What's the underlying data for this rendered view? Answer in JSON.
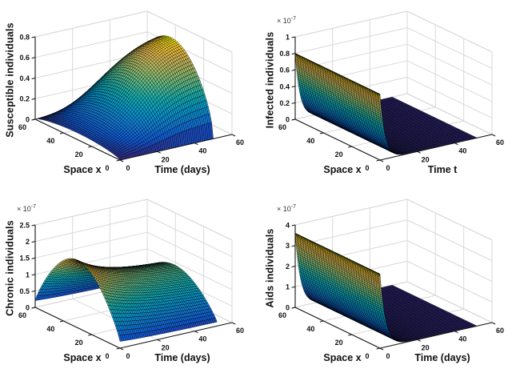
{
  "figure": {
    "background": "#ffffff",
    "colormap": "parula",
    "grid_color": "#d9d9d9",
    "axis_color": "#151515",
    "tick_text_color": "#111111",
    "surface_edge_color": "rgba(0,0,0,0.85)"
  },
  "chart_data": [
    {
      "id": "susceptible",
      "position": "top-left",
      "type": "surface",
      "zlabel": "Susceptible individuals",
      "xlabel": "Time (days)",
      "ylabel": "Space x",
      "x_ticks": [
        0,
        20,
        40,
        60
      ],
      "y_ticks": [
        0,
        20,
        40,
        60
      ],
      "z_ticks": [
        "0",
        "0.2",
        "0.4",
        "0.6",
        "0.8"
      ],
      "xlim": [
        0,
        60
      ],
      "ylim": [
        0,
        60
      ],
      "zlim": [
        0,
        0.8
      ],
      "scale_factor": null,
      "grid": true,
      "surface": {
        "kind": "ramp_sin",
        "z_peak": 0.82,
        "t_mid": 22,
        "t_tau": 9,
        "x_pow": 0.6,
        "t_max": 50,
        "s_max": 60,
        "grid_nt": 52,
        "grid_ns": 50,
        "t_power": 1
      },
      "description": "Susceptible population grows logistically in time from 0 toward ~0.8, with a sine-shaped spatial profile vanishing at space boundaries x=0 and x=60."
    },
    {
      "id": "infected",
      "position": "top-right",
      "type": "surface",
      "zlabel": "Infected individuals",
      "xlabel": "Time t",
      "ylabel": "Space x",
      "x_ticks": [
        0,
        20,
        40,
        60
      ],
      "y_ticks": [
        0,
        20,
        40,
        60
      ],
      "z_ticks": [
        "0",
        "0.2",
        "0.4",
        "0.6",
        "0.8",
        "1"
      ],
      "xlim": [
        0,
        60
      ],
      "ylim": [
        0,
        60
      ],
      "zlim": [
        0,
        1
      ],
      "scale_factor": {
        "base": "× 10",
        "exp": "-7"
      },
      "grid": true,
      "surface": {
        "kind": "decay_wall",
        "z0": 0.8,
        "t_tau": 2.6,
        "t_max": 52,
        "s_max": 60,
        "grid_nt": 110,
        "grid_ns": 55,
        "t_power": 2.2
      },
      "description": "Infected population starts at 0.8e-7 uniformly in space at t=0 and decays exponentially to ~0, forming a wall at t=0."
    },
    {
      "id": "chronic",
      "position": "bottom-left",
      "type": "surface",
      "zlabel": "Chronic individuals",
      "xlabel": "Time (days)",
      "ylabel": "Space x",
      "x_ticks": [
        0,
        20,
        40,
        60
      ],
      "y_ticks": [
        0,
        20,
        40,
        60
      ],
      "z_ticks": [
        "0",
        "0.5",
        "1",
        "1.5",
        "2",
        "2.5"
      ],
      "xlim": [
        0,
        60
      ],
      "ylim": [
        0,
        60
      ],
      "zlim": [
        0,
        2.5
      ],
      "scale_factor": {
        "base": "× 10",
        "exp": "-7"
      },
      "grid": true,
      "surface": {
        "kind": "dome",
        "z_peak": 2.05,
        "t_base": 0.56,
        "t_amp": 0.44,
        "t_tau": 22,
        "x_floor": 0.1,
        "x_pow": 0.85,
        "t_max": 52,
        "s_max": 60,
        "grid_nt": 52,
        "grid_ns": 55,
        "t_power": 1
      },
      "description": "Chronic population forms a dome peaking near 2.05e-7 at mid-space and t=0, slowly decaying in time to ~1.2e-7, dropping steeply near the space boundaries."
    },
    {
      "id": "aids",
      "position": "bottom-right",
      "type": "surface",
      "zlabel": "Aids individuals",
      "xlabel": "Time (days)",
      "ylabel": "Space x",
      "x_ticks": [
        0,
        20,
        40,
        60
      ],
      "y_ticks": [
        0,
        20,
        40,
        60
      ],
      "z_ticks": [
        "0",
        "1",
        "2",
        "3",
        "4"
      ],
      "xlim": [
        0,
        60
      ],
      "ylim": [
        0,
        60
      ],
      "zlim": [
        0,
        4
      ],
      "scale_factor": {
        "base": "× 10",
        "exp": "-7"
      },
      "grid": true,
      "surface": {
        "kind": "decay_wall",
        "z0": 3.6,
        "t_tau": 2.9,
        "t_max": 52,
        "s_max": 60,
        "grid_nt": 110,
        "grid_ns": 55,
        "t_power": 2.2
      },
      "description": "Aids population starts at 3.6e-7 uniformly in space at t=0 and decays exponentially to ~0, forming a wall at t=0."
    }
  ]
}
